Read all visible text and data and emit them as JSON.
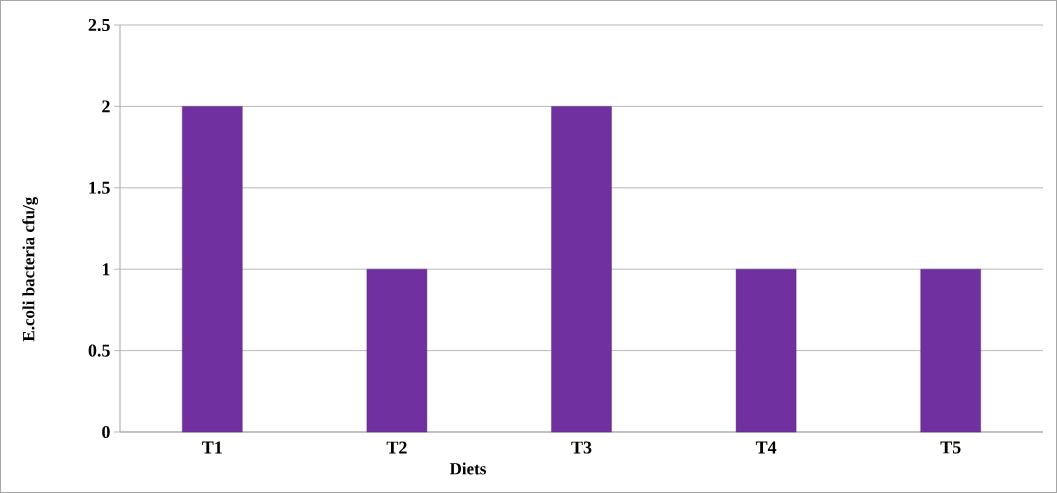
{
  "chart_data": {
    "type": "bar",
    "xlabel": "Diets",
    "ylabel": "E.coli bacteria cfu/g",
    "categories": [
      "T1",
      "T2",
      "T3",
      "T4",
      "T5"
    ],
    "values": [
      2,
      1,
      2,
      1,
      1
    ],
    "color": "#7030a0",
    "ylim": [
      0,
      2.5
    ],
    "yticks": [
      0,
      0.5,
      1,
      1.5,
      2,
      2.5
    ],
    "grid": "y"
  }
}
